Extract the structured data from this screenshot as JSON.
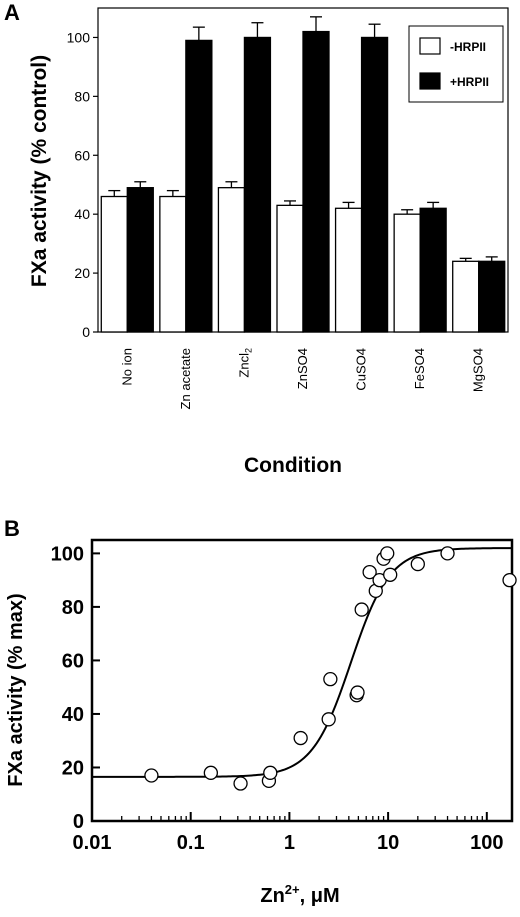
{
  "chart_data": [
    {
      "panel": "A",
      "type": "bar",
      "ylabel": "FXa activity (% control)",
      "xlabel": "Condition",
      "ylim": [
        0,
        110
      ],
      "yticks": [
        0,
        20,
        40,
        60,
        80,
        100
      ],
      "grid": false,
      "legend": "top-right",
      "categories": [
        {
          "label": "No ion"
        },
        {
          "label": "Zn acetate"
        },
        {
          "label": "Zncl",
          "sub": "2"
        },
        {
          "label": "ZnSO4"
        },
        {
          "label": "CuSO4"
        },
        {
          "label": "FeSO4"
        },
        {
          "label": "MgSO4"
        }
      ],
      "series": [
        {
          "name": "-HRPII",
          "color": "#ffffff",
          "values": [
            46,
            46,
            49,
            43,
            42,
            40,
            24
          ],
          "errors": [
            2,
            2,
            2,
            1.5,
            2,
            1.5,
            1
          ]
        },
        {
          "name": "+HRPII",
          "color": "#000000",
          "values": [
            49,
            99,
            100,
            102,
            100,
            42,
            24
          ],
          "errors": [
            2,
            4.5,
            5,
            5,
            4.5,
            2,
            1.5
          ]
        }
      ]
    },
    {
      "panel": "B",
      "type": "scatter",
      "ylabel": "FXa activity (% max)",
      "xlabel": "Zn",
      "xlabel_sup": "2+",
      "xlabel_unit": ", μM",
      "xscale": "log",
      "xlim": [
        0.01,
        180
      ],
      "ylim": [
        0,
        105
      ],
      "xticks": [
        0.01,
        0.1,
        1,
        10,
        100
      ],
      "xtick_labels": [
        "0.01",
        "0.1",
        "1",
        "10",
        "100"
      ],
      "yticks": [
        0,
        20,
        40,
        60,
        80,
        100
      ],
      "grid": false,
      "points": [
        [
          0.04,
          17
        ],
        [
          0.16,
          18
        ],
        [
          0.32,
          14
        ],
        [
          0.62,
          15
        ],
        [
          0.64,
          18
        ],
        [
          1.3,
          31
        ],
        [
          2.5,
          38
        ],
        [
          2.6,
          53
        ],
        [
          4.8,
          47
        ],
        [
          4.9,
          48
        ],
        [
          5.4,
          79
        ],
        [
          6.5,
          93
        ],
        [
          7.5,
          86
        ],
        [
          8.2,
          90
        ],
        [
          9,
          98
        ],
        [
          9.8,
          100
        ],
        [
          10.5,
          92
        ],
        [
          20,
          96
        ],
        [
          40,
          100
        ],
        [
          170,
          90
        ]
      ],
      "fit": {
        "bottom": 16.5,
        "top": 102,
        "ec50": 4.2,
        "hill": 2.2
      }
    }
  ],
  "panel_labels": {
    "a": "A",
    "b": "B"
  }
}
